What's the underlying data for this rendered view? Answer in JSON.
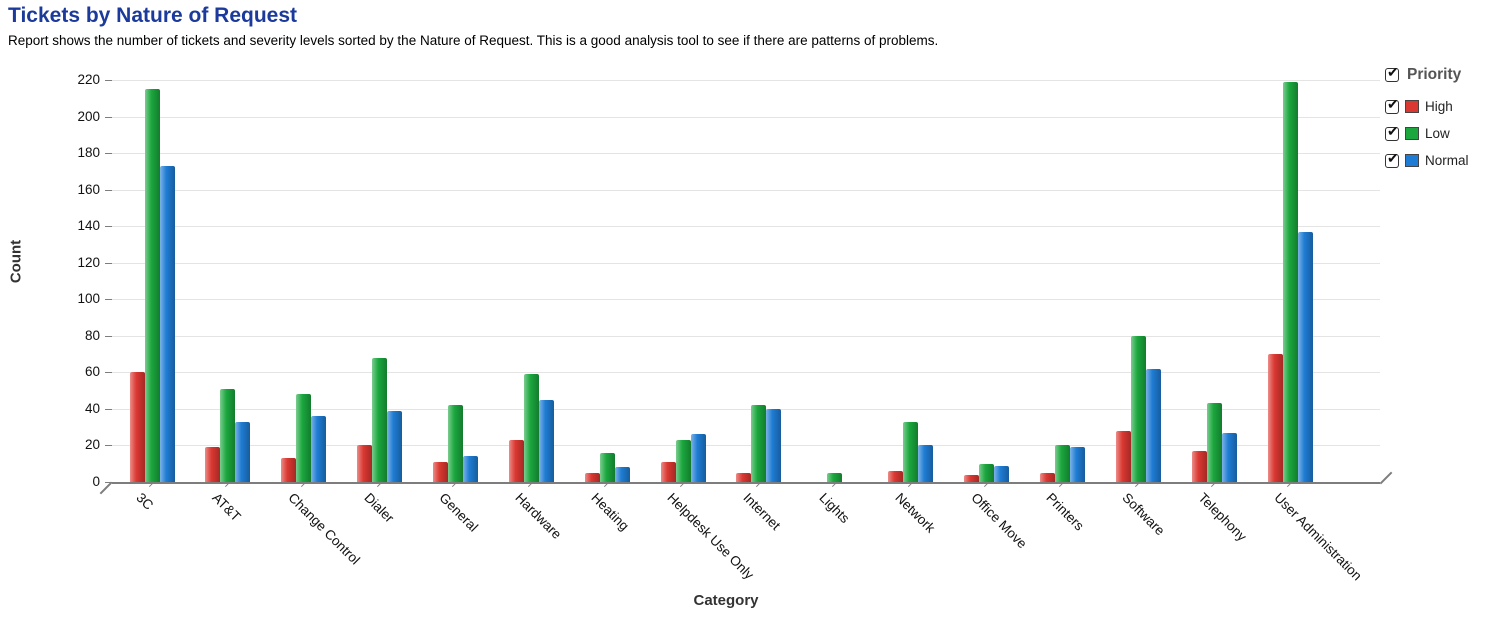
{
  "header": {
    "title": "Tickets by Nature of Request",
    "title_color": "#1b3a9c",
    "subtitle": "Report shows the number of tickets and severity levels sorted by the Nature of Request. This is a good analysis tool to see if there are patterns of problems."
  },
  "legend": {
    "title": "Priority",
    "checked": true,
    "items": [
      {
        "label": "High",
        "color": "#dc3832",
        "checked": true
      },
      {
        "label": "Low",
        "color": "#1ba73e",
        "checked": true
      },
      {
        "label": "Normal",
        "color": "#1f7cd4",
        "checked": true
      }
    ]
  },
  "chart_data": {
    "type": "bar",
    "title": "Tickets by Nature of Request",
    "xlabel": "Category",
    "ylabel": "Count",
    "ylim": [
      0,
      220
    ],
    "ytick_step": 20,
    "grid": true,
    "legend_position": "top-right",
    "categories": [
      "3C",
      "AT&T",
      "Change Control",
      "Dialer",
      "General",
      "Hardware",
      "Heating",
      "Helpdesk Use Only",
      "Internet",
      "Lights",
      "Network",
      "Office Move",
      "Printers",
      "Software",
      "Telephony",
      "User Administration"
    ],
    "series": [
      {
        "name": "High",
        "color": "#dc3832",
        "values": [
          60,
          19,
          13,
          20,
          11,
          23,
          5,
          11,
          5,
          0,
          6,
          4,
          5,
          28,
          17,
          70
        ]
      },
      {
        "name": "Low",
        "color": "#1ba73e",
        "values": [
          215,
          51,
          48,
          68,
          42,
          59,
          16,
          23,
          42,
          5,
          33,
          10,
          20,
          80,
          43,
          219
        ]
      },
      {
        "name": "Normal",
        "color": "#1f7cd4",
        "values": [
          173,
          33,
          36,
          39,
          14,
          45,
          8,
          26,
          40,
          0,
          20,
          9,
          19,
          62,
          27,
          137
        ]
      }
    ]
  }
}
